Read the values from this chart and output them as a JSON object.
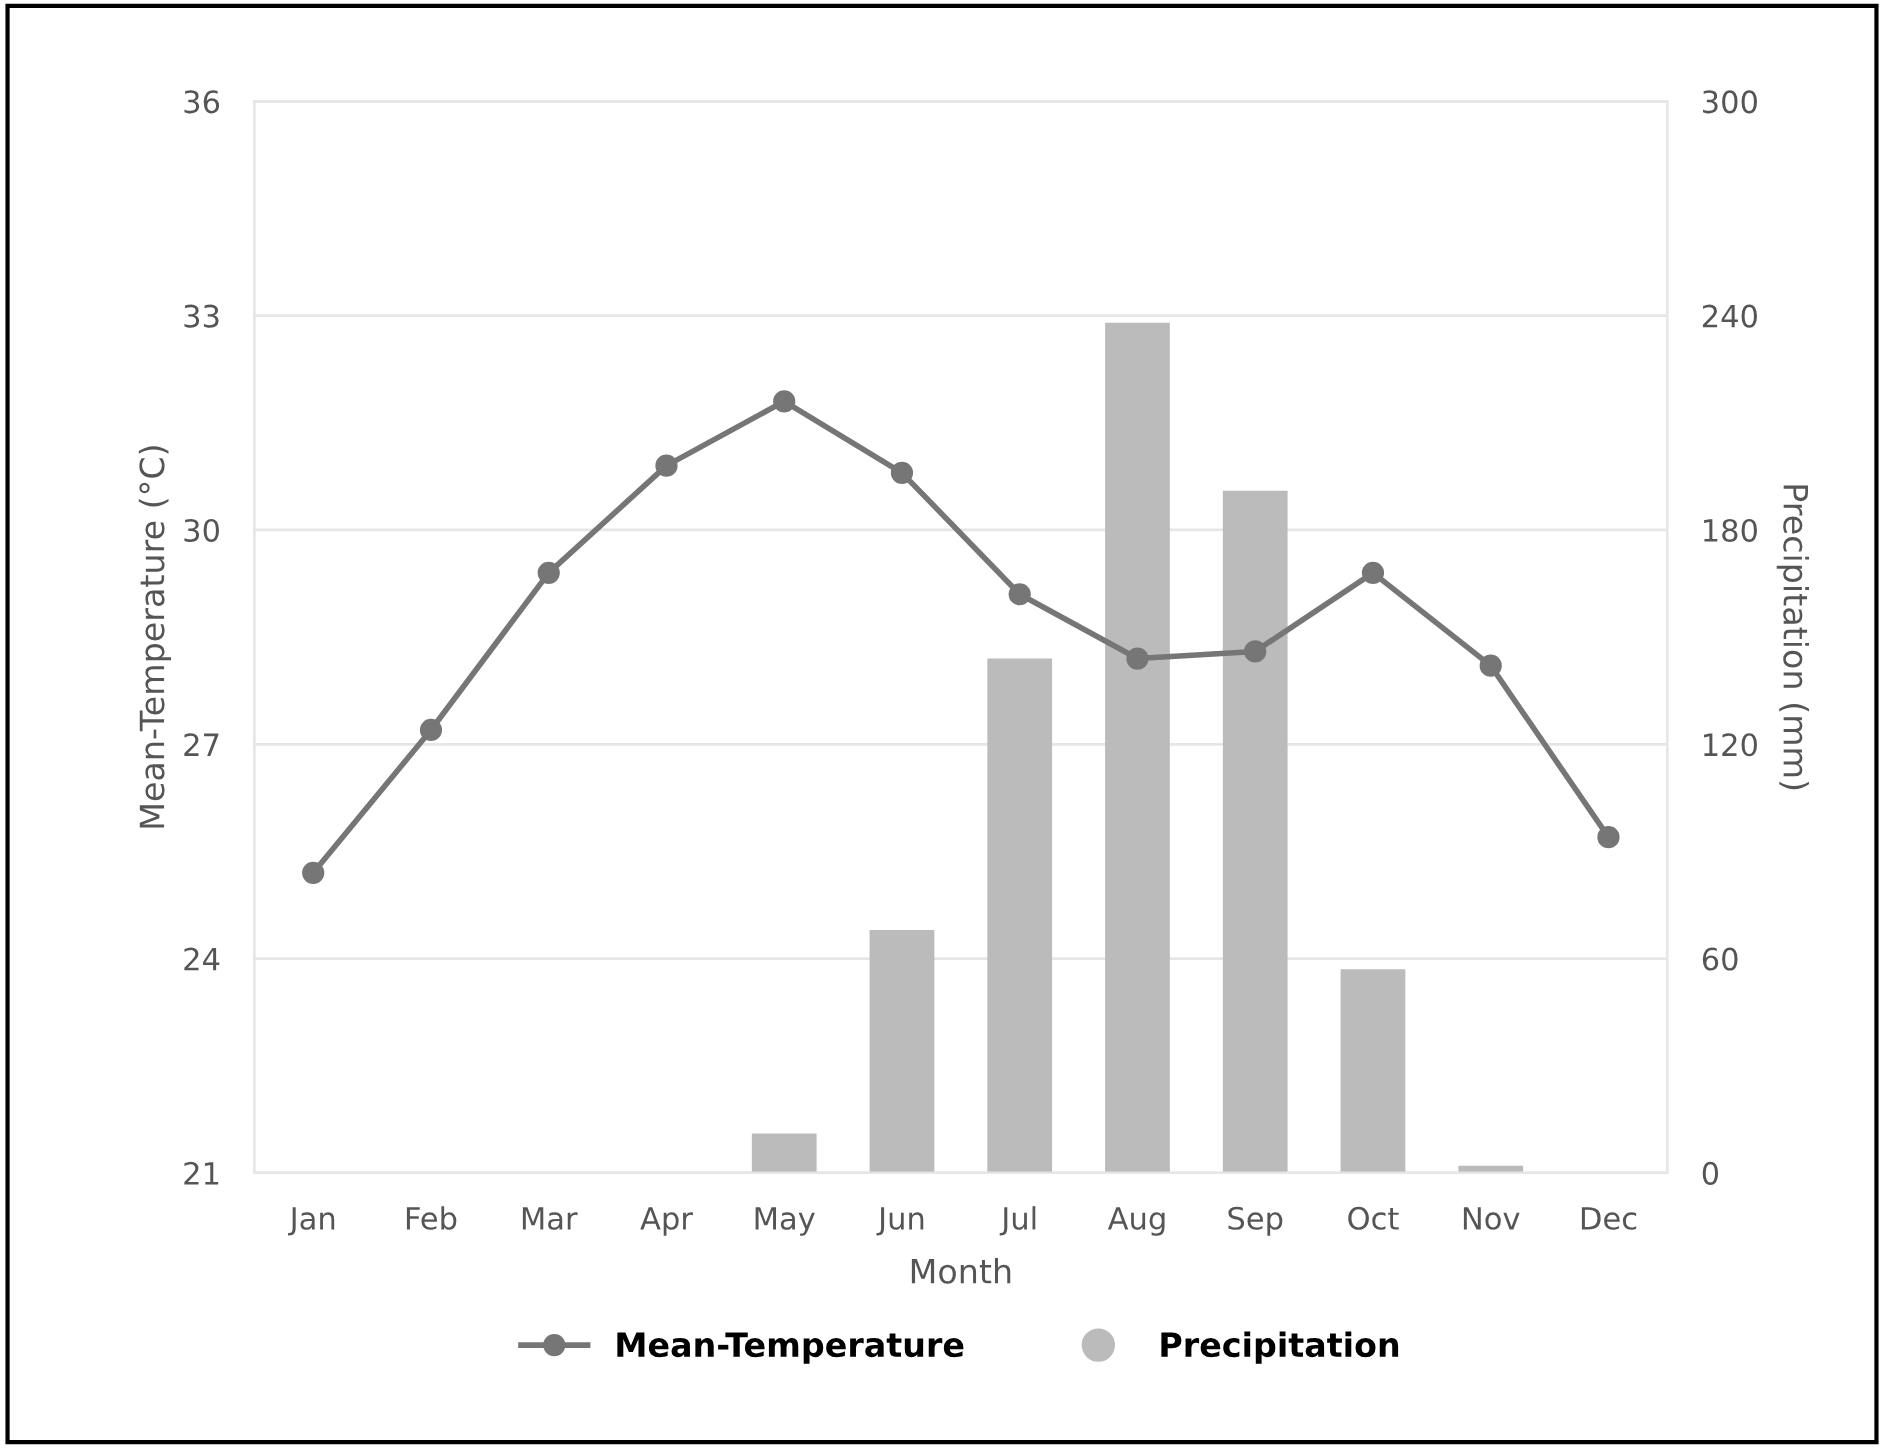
{
  "chart_data": {
    "type": "bar",
    "xlabel": "Month",
    "ylabel": "Mean-Temperature (°C)",
    "y2label": "Precipitation (mm)",
    "categories": [
      "Jan",
      "Feb",
      "Mar",
      "Apr",
      "May",
      "Jun",
      "Jul",
      "Aug",
      "Sep",
      "Oct",
      "Nov",
      "Dec"
    ],
    "series": [
      {
        "name": "Mean-Temperature",
        "type": "line",
        "color": "#767676",
        "values": [
          25.2,
          27.2,
          29.4,
          30.9,
          31.8,
          30.8,
          29.1,
          28.2,
          28.3,
          29.4,
          28.1,
          25.7
        ]
      },
      {
        "name": "Precipitation",
        "axis": "y2",
        "color": "#bbbbbb",
        "values": [
          0,
          0,
          0,
          0,
          11,
          68,
          144,
          238,
          191,
          57,
          2,
          0
        ]
      }
    ],
    "ylim": [
      21,
      36
    ],
    "yticks": [
      21,
      24,
      27,
      30,
      33,
      36
    ],
    "y2lim": [
      0,
      300
    ],
    "y2ticks": [
      0,
      60,
      120,
      180,
      240,
      300
    ],
    "grid": "y",
    "legend": "bottom",
    "marker": "circle",
    "line_style": "solid"
  }
}
